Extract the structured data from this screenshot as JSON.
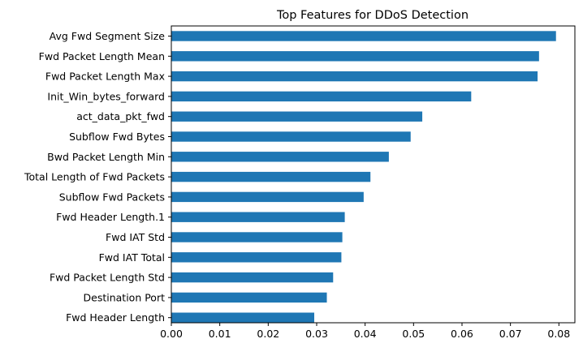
{
  "chart_data": {
    "type": "bar",
    "orientation": "horizontal",
    "title": "Top Features for DDoS Detection",
    "xlabel": "",
    "ylabel": "",
    "categories": [
      "Avg Fwd Segment Size",
      "Fwd Packet Length Mean",
      "Fwd Packet Length Max",
      "Init_Win_bytes_forward",
      "act_data_pkt_fwd",
      "Subflow Fwd Bytes",
      "Bwd Packet Length Min",
      "Total Length of Fwd Packets",
      "Subflow Fwd Packets",
      "Fwd Header Length.1",
      "Fwd IAT Std",
      "Fwd IAT Total",
      "Fwd Packet Length Std",
      "Destination Port",
      "Fwd Header Length"
    ],
    "values": [
      0.0794,
      0.0759,
      0.0756,
      0.0619,
      0.0518,
      0.0494,
      0.0449,
      0.0411,
      0.0397,
      0.0358,
      0.0353,
      0.0351,
      0.0334,
      0.0321,
      0.0295
    ],
    "xlim": [
      0,
      0.0833
    ],
    "xticks": [
      "0.00",
      "0.01",
      "0.02",
      "0.03",
      "0.04",
      "0.05",
      "0.06",
      "0.07",
      "0.08"
    ],
    "bar_color": "#1f77b4",
    "grid": false,
    "legend": "none"
  }
}
